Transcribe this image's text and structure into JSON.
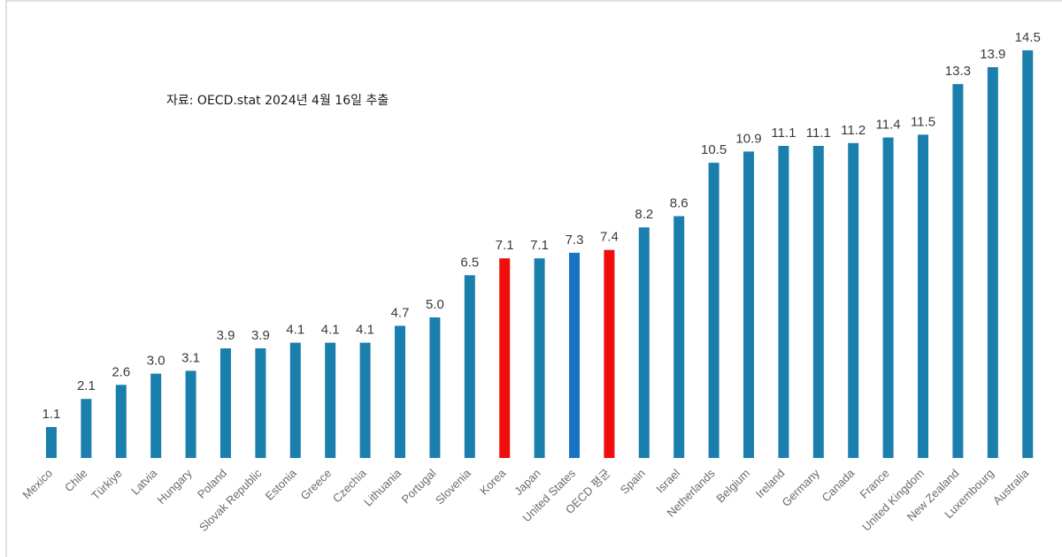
{
  "source_note": "자료: OECD.stat 2024년 4월 16일 추출",
  "chart_data": {
    "type": "bar",
    "title": "",
    "xlabel": "",
    "ylabel": "",
    "ylim": [
      0,
      15
    ],
    "grid": false,
    "legend": "none",
    "categories": [
      "Mexico",
      "Chile",
      "Türkiye",
      "Latvia",
      "Hungary",
      "Poland",
      "Slovak Republic",
      "Estonia",
      "Greece",
      "Czechia",
      "Lithuania",
      "Portugal",
      "Slovenia",
      "Korea",
      "Japan",
      "United States",
      "OECD 평균",
      "Spain",
      "Israel",
      "Netherlands",
      "Belgium",
      "Ireland",
      "Germany",
      "Canada",
      "France",
      "United Kingdom",
      "New Zealand",
      "Luxembourg",
      "Australia"
    ],
    "values": [
      1.1,
      2.1,
      2.6,
      3.0,
      3.1,
      3.9,
      3.9,
      4.1,
      4.1,
      4.1,
      4.7,
      5.0,
      6.5,
      7.1,
      7.1,
      7.3,
      7.4,
      8.2,
      8.6,
      10.5,
      10.9,
      11.1,
      11.1,
      11.2,
      11.4,
      11.5,
      13.3,
      13.9,
      14.5
    ],
    "value_labels": [
      "1.1",
      "2.1",
      "2.6",
      "3.0",
      "3.1",
      "3.9",
      "3.9",
      "4.1",
      "4.1",
      "4.1",
      "4.7",
      "5.0",
      "6.5",
      "7.1",
      "7.1",
      "7.3",
      "7.4",
      "8.2",
      "8.6",
      "10.5",
      "10.9",
      "11.1",
      "11.1",
      "11.2",
      "11.4",
      "11.5",
      "13.3",
      "13.9",
      "14.5"
    ],
    "colors": {
      "default": "#1b7fad",
      "highlight": "#f20d0d",
      "united_states": "#1873c4"
    },
    "bar_colors": [
      "default",
      "default",
      "default",
      "default",
      "default",
      "default",
      "default",
      "default",
      "default",
      "default",
      "default",
      "default",
      "default",
      "highlight",
      "default",
      "united_states",
      "highlight",
      "default",
      "default",
      "default",
      "default",
      "default",
      "default",
      "default",
      "default",
      "default",
      "default",
      "default",
      "default"
    ]
  }
}
